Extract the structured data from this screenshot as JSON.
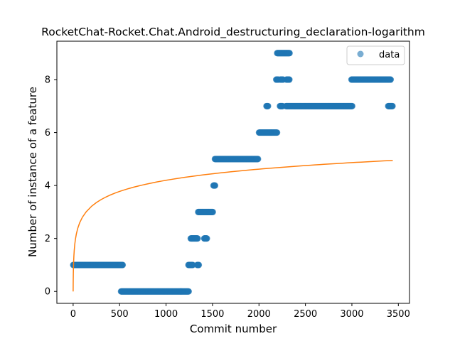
{
  "chart_data": {
    "type": "scatter",
    "title": "RocketChat-Rocket.Chat.Android_destructuring_declaration-logarithm",
    "xlabel": "Commit number",
    "ylabel": "Number of instance of a feature",
    "xlim": [
      -175,
      3620
    ],
    "ylim": [
      -0.45,
      9.45
    ],
    "xticks": [
      0,
      500,
      1000,
      1500,
      2000,
      2500,
      3000,
      3500
    ],
    "yticks": [
      0,
      2,
      4,
      6,
      8
    ],
    "grid": false,
    "legend": {
      "placement": "top-right",
      "entries": [
        "data"
      ]
    },
    "colors": {
      "data": "#1f77b4",
      "fit": "#ff7f0e"
    },
    "series": [
      {
        "name": "data",
        "kind": "scatter",
        "segments": [
          {
            "x": [
              0,
              535
            ],
            "y": 1
          },
          {
            "x": [
              515,
              1245
            ],
            "y": 0
          },
          {
            "x": [
              1240,
              1290
            ],
            "y": 1
          },
          {
            "x": [
              1335,
              1355
            ],
            "y": 1
          },
          {
            "x": [
              1265,
              1340
            ],
            "y": 2
          },
          {
            "x": [
              1410,
              1440
            ],
            "y": 2
          },
          {
            "x": [
              1345,
              1505
            ],
            "y": 3
          },
          {
            "x": [
              1510,
              1530
            ],
            "y": 4
          },
          {
            "x": [
              1525,
              1990
            ],
            "y": 5
          },
          {
            "x": [
              2000,
              2195
            ],
            "y": 6
          },
          {
            "x": [
              2080,
              2100
            ],
            "y": 7
          },
          {
            "x": [
              2225,
              2255
            ],
            "y": 7
          },
          {
            "x": [
              2290,
              3005
            ],
            "y": 7
          },
          {
            "x": [
              3390,
              3440
            ],
            "y": 7
          },
          {
            "x": [
              2185,
              2210
            ],
            "y": 8
          },
          {
            "x": [
              2230,
              2260
            ],
            "y": 8
          },
          {
            "x": [
              2295,
              2330
            ],
            "y": 8
          },
          {
            "x": [
              2995,
              3420
            ],
            "y": 8
          },
          {
            "x": [
              2195,
              2330
            ],
            "y": 9
          }
        ]
      },
      {
        "kind": "line",
        "model": "y = a + b*ln(x+1)",
        "a": 0,
        "b": 0.6075,
        "x_range": [
          0,
          3440
        ]
      }
    ]
  }
}
